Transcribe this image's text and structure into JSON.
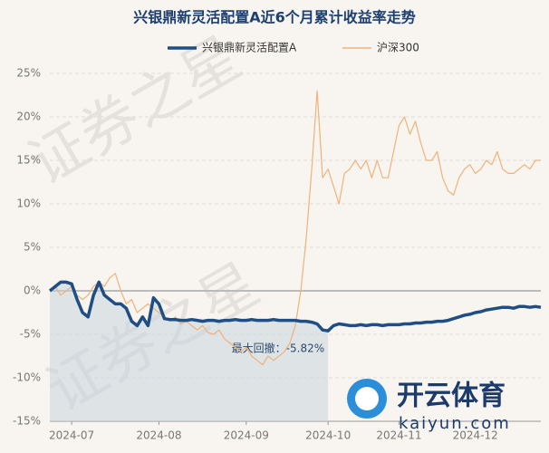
{
  "chart_data": {
    "type": "line",
    "title": "兴银鼎新灵活配置A近6个月累计收益率走势",
    "categories": [
      null,
      null,
      null,
      null,
      "2024-07",
      null,
      null,
      null,
      null,
      null,
      null,
      null,
      null,
      null,
      null,
      null,
      null,
      null,
      null,
      null,
      "2024-08",
      null,
      null,
      null,
      null,
      null,
      null,
      null,
      null,
      null,
      null,
      null,
      null,
      null,
      null,
      null,
      "2024-09",
      null,
      null,
      null,
      null,
      null,
      null,
      null,
      null,
      null,
      null,
      null,
      null,
      null,
      null,
      "2024-10",
      null,
      null,
      null,
      null,
      null,
      null,
      null,
      null,
      null,
      null,
      null,
      null,
      "2024-11",
      null,
      null,
      null,
      null,
      null,
      null,
      null,
      null,
      null,
      null,
      null,
      null,
      null,
      "2024-12",
      null,
      null,
      null,
      null,
      null,
      null,
      null,
      null,
      null,
      null,
      null,
      null
    ],
    "series": [
      {
        "name": "兴银鼎新灵活配置A",
        "color": "#1f4e85",
        "values": [
          0,
          0.5,
          1,
          1,
          0.8,
          -1,
          -2.5,
          -3,
          -0.5,
          1,
          -0.5,
          -1,
          -1.5,
          -1.5,
          -2,
          -3.5,
          -4,
          -3,
          -4,
          -0.8,
          -1.5,
          -3.2,
          -3.3,
          -3.3,
          -3.4,
          -3.4,
          -3.3,
          -3.4,
          -3.5,
          -3.4,
          -3.4,
          -3.5,
          -3.4,
          -3.4,
          -3.3,
          -3.4,
          -3.4,
          -3.3,
          -3.4,
          -3.4,
          -3.4,
          -3.3,
          -3.4,
          -3.4,
          -3.4,
          -3.4,
          -3.5,
          -3.5,
          -3.6,
          -3.8,
          -4.5,
          -4.6,
          -4,
          -3.8,
          -3.9,
          -4,
          -4,
          -3.9,
          -4,
          -3.9,
          -3.9,
          -4,
          -3.9,
          -3.9,
          -3.9,
          -3.8,
          -3.8,
          -3.7,
          -3.7,
          -3.6,
          -3.6,
          -3.5,
          -3.5,
          -3.4,
          -3.2,
          -3,
          -2.8,
          -2.7,
          -2.5,
          -2.4,
          -2.2,
          -2.1,
          -2,
          -1.9,
          -1.9,
          -2,
          -1.8,
          -1.8,
          -1.9,
          -1.8,
          -1.9
        ]
      },
      {
        "name": "沪深300",
        "color": "#f0b27a",
        "values": [
          0,
          0.5,
          -0.5,
          0,
          0.5,
          -0.5,
          -1,
          -0.5,
          0.5,
          1,
          0.5,
          1.5,
          2,
          0,
          -1.5,
          -1,
          -2.5,
          -2,
          -1.5,
          -2,
          -2.5,
          -3,
          -3.5,
          -3,
          -3.8,
          -3.5,
          -4,
          -4.5,
          -4,
          -4.8,
          -5,
          -4.5,
          -5.5,
          -6,
          -6.5,
          -7,
          -6.5,
          -7.5,
          -8,
          -8.5,
          -7.5,
          -8,
          -7.5,
          -7,
          -6,
          -4,
          0,
          6,
          14,
          23,
          13,
          14,
          12,
          10,
          13.5,
          14,
          15,
          14,
          15,
          13,
          15,
          13,
          13,
          16,
          19,
          20,
          18,
          19.5,
          17,
          15,
          15,
          16,
          13,
          11.5,
          11,
          13,
          14,
          14.5,
          13.5,
          14,
          15,
          14.5,
          16,
          14,
          13.5,
          13.5,
          14,
          14.5,
          14,
          15,
          15
        ]
      }
    ],
    "ylim": [
      -15,
      25
    ],
    "yticks": [
      {
        "value": -15,
        "label": "-15%"
      },
      {
        "value": -10,
        "label": "-10%"
      },
      {
        "value": -5,
        "label": "-5%"
      },
      {
        "value": 0,
        "label": "0%"
      },
      {
        "value": 5,
        "label": "5%"
      },
      {
        "value": 10,
        "label": "10%"
      },
      {
        "value": 15,
        "label": "15%"
      },
      {
        "value": 20,
        "label": "20%"
      },
      {
        "value": 25,
        "label": "25%"
      }
    ],
    "grid": true,
    "legend": "top",
    "annotation": "最大回撤：-5.82%"
  },
  "overlay": {
    "watermark": "证券之星",
    "logo_title": "开云体育",
    "logo_url": "kaiyun.com"
  }
}
